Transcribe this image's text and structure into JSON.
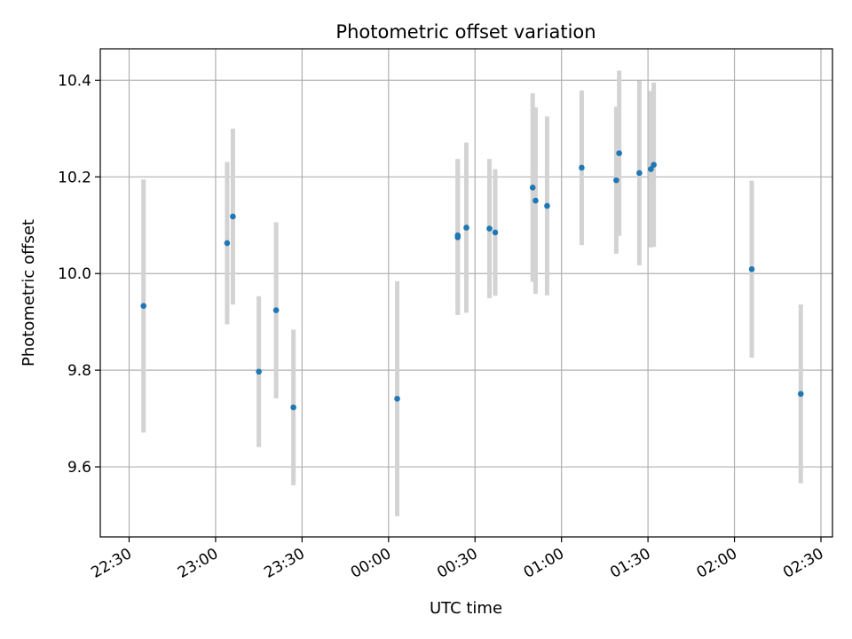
{
  "chart_data": {
    "type": "scatter",
    "title": "Photometric offset variation",
    "xlabel": "UTC time",
    "ylabel": "Photometric offset",
    "grid": true,
    "x_unit": "HH:MM (UTC, wrapping past midnight)",
    "xlim": [
      "22:20",
      "02:34"
    ],
    "ylim": [
      9.455,
      10.465
    ],
    "xticks": [
      "22:30",
      "23:00",
      "23:30",
      "00:00",
      "00:30",
      "01:00",
      "01:30",
      "02:00",
      "02:30"
    ],
    "yticks": [
      9.6,
      9.8,
      10.0,
      10.2,
      10.4
    ],
    "ytick_labels": [
      "9.6",
      "9.8",
      "10.0",
      "10.2",
      "10.4"
    ],
    "marker_color": "#1f77b4",
    "errorbar_color": "#d3d3d3",
    "points": [
      {
        "x": "22:35",
        "y": 9.933,
        "err": 0.262
      },
      {
        "x": "23:04",
        "y": 10.063,
        "err": 0.168
      },
      {
        "x": "23:06",
        "y": 10.118,
        "err": 0.182
      },
      {
        "x": "23:15",
        "y": 9.797,
        "err": 0.156
      },
      {
        "x": "23:21",
        "y": 9.924,
        "err": 0.182
      },
      {
        "x": "23:27",
        "y": 9.723,
        "err": 0.161
      },
      {
        "x": "00:03",
        "y": 9.741,
        "err": 0.243
      },
      {
        "x": "00:24",
        "y": 10.079,
        "err": 0.158
      },
      {
        "x": "00:24",
        "y": 10.075,
        "err": 0.161
      },
      {
        "x": "00:27",
        "y": 10.095,
        "err": 0.176
      },
      {
        "x": "00:35",
        "y": 10.093,
        "err": 0.144
      },
      {
        "x": "00:37",
        "y": 10.085,
        "err": 0.131
      },
      {
        "x": "00:50",
        "y": 10.178,
        "err": 0.195
      },
      {
        "x": "00:51",
        "y": 10.151,
        "err": 0.193
      },
      {
        "x": "00:55",
        "y": 10.14,
        "err": 0.185
      },
      {
        "x": "01:07",
        "y": 10.219,
        "err": 0.16
      },
      {
        "x": "01:19",
        "y": 10.193,
        "err": 0.152
      },
      {
        "x": "01:20",
        "y": 10.249,
        "err": 0.171
      },
      {
        "x": "01:27",
        "y": 10.208,
        "err": 0.191
      },
      {
        "x": "01:31",
        "y": 10.216,
        "err": 0.162
      },
      {
        "x": "01:32",
        "y": 10.225,
        "err": 0.17
      },
      {
        "x": "02:06",
        "y": 10.009,
        "err": 0.183
      },
      {
        "x": "02:23",
        "y": 9.751,
        "err": 0.185
      }
    ]
  }
}
